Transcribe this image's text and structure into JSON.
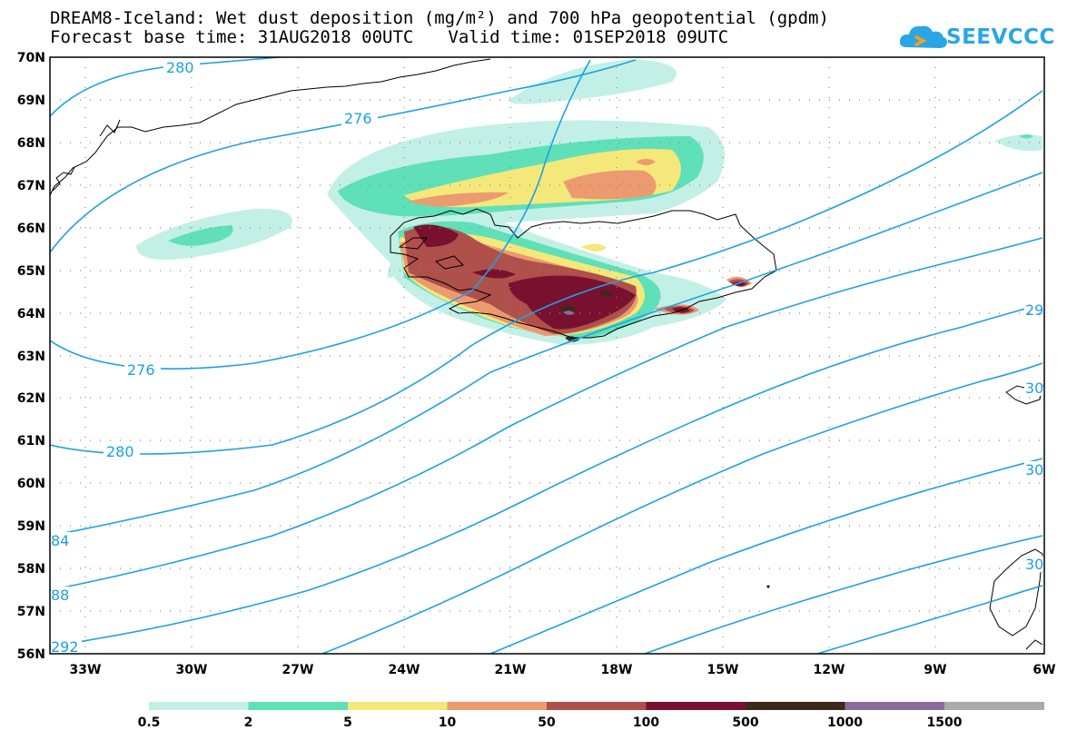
{
  "title": {
    "line1": "DREAM8-Iceland: Wet dust deposition (mg/m²) and 700 hPa geopotential (gpdm)",
    "base_time": "Forecast base time: 31AUG2018 00UTC",
    "valid_time": "Valid time: 01SEP2018 09UTC"
  },
  "logo": {
    "text": "SEEVCCC",
    "icon": "cloud-icon"
  },
  "map": {
    "lat_labels": [
      "70N",
      "69N",
      "68N",
      "67N",
      "66N",
      "65N",
      "64N",
      "63N",
      "62N",
      "61N",
      "60N",
      "59N",
      "58N",
      "57N",
      "56N"
    ],
    "lon_labels": [
      "33W",
      "30W",
      "27W",
      "24W",
      "21W",
      "18W",
      "15W",
      "12W",
      "9W",
      "6W"
    ],
    "contour_labels": [
      "280",
      "276",
      "276",
      "280",
      "84",
      "88",
      "292",
      "29",
      "30",
      "30",
      "30"
    ]
  },
  "colorbar": {
    "colors": [
      "#c3f0e6",
      "#5fe0b8",
      "#f5e87a",
      "#ec9a70",
      "#b0504a",
      "#7a1030",
      "#3a2a1c",
      "#8c6b9c",
      "#aaaaaa"
    ],
    "tick_labels": [
      "0.5",
      "2",
      "5",
      "10",
      "50",
      "100",
      "500",
      "1000",
      "1500"
    ]
  }
}
